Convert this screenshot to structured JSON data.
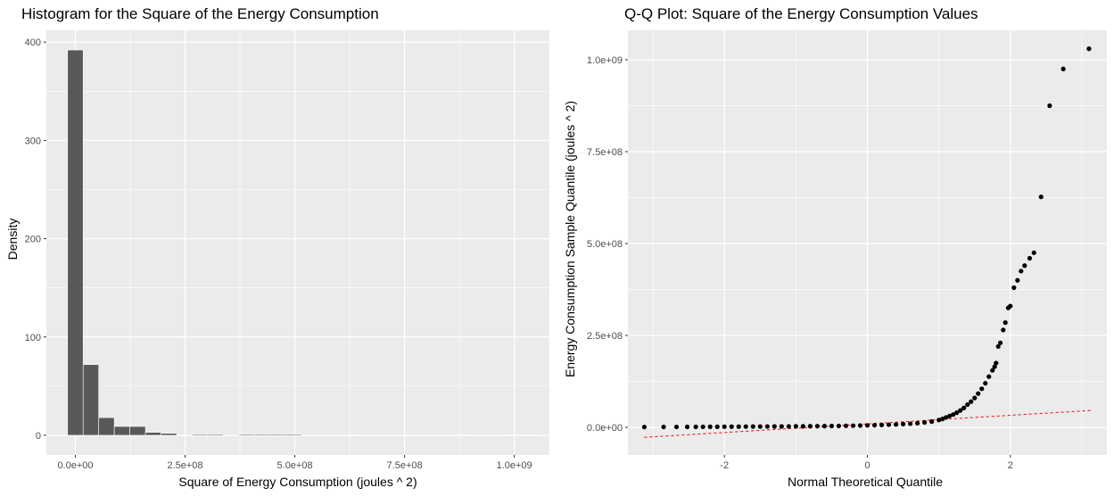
{
  "chart_data": [
    {
      "type": "bar",
      "title": "Histogram for the Square of the Energy Consumption",
      "xlabel": "Square of Energy Consumption (joules ^ 2)",
      "ylabel": "Density",
      "xlim": [
        -66000000.0,
        1080000000.0
      ],
      "ylim": [
        -20,
        412
      ],
      "x_ticks": [
        0,
        250000000,
        500000000,
        750000000,
        1000000000
      ],
      "x_tick_labels": [
        "0.0e+00",
        "2.5e+08",
        "5.0e+08",
        "7.5e+08",
        "1.0e+09"
      ],
      "y_ticks": [
        0,
        100,
        200,
        300,
        400
      ],
      "y_tick_labels": [
        "0",
        "100",
        "200",
        "300",
        "400"
      ],
      "bin_width": 35500000,
      "bins": [
        {
          "x0": -17750000,
          "value": 392
        },
        {
          "x0": 17750000,
          "value": 72
        },
        {
          "x0": 53250000,
          "value": 18
        },
        {
          "x0": 88750000,
          "value": 9
        },
        {
          "x0": 124250000,
          "value": 9
        },
        {
          "x0": 159750000,
          "value": 3
        },
        {
          "x0": 195250000,
          "value": 2
        },
        {
          "x0": 230750000,
          "value": 0
        },
        {
          "x0": 266250000,
          "value": 1
        },
        {
          "x0": 301750000,
          "value": 1
        },
        {
          "x0": 337250000,
          "value": 0
        },
        {
          "x0": 372750000,
          "value": 1
        },
        {
          "x0": 408250000,
          "value": 1
        },
        {
          "x0": 443750000,
          "value": 1
        },
        {
          "x0": 479250000,
          "value": 1
        },
        {
          "x0": 514750000,
          "value": 0
        },
        {
          "x0": 550250000,
          "value": 0
        },
        {
          "x0": 585750000,
          "value": 0
        },
        {
          "x0": 621250000,
          "value": 0.5
        },
        {
          "x0": 656750000,
          "value": 0
        },
        {
          "x0": 692250000,
          "value": 0
        },
        {
          "x0": 727750000,
          "value": 0
        },
        {
          "x0": 763250000,
          "value": 0
        },
        {
          "x0": 798750000,
          "value": 0
        },
        {
          "x0": 834250000,
          "value": 0
        },
        {
          "x0": 869750000,
          "value": 0.5
        },
        {
          "x0": 905250000,
          "value": 0
        },
        {
          "x0": 940750000,
          "value": 0
        },
        {
          "x0": 976250000,
          "value": 0.5
        },
        {
          "x0": 1011750000,
          "value": 0.5
        }
      ],
      "grid": true,
      "colors": {
        "panel": "#ebebeb",
        "grid": "#ffffff",
        "bar": "#595959"
      }
    },
    {
      "type": "scatter",
      "title": "Q-Q Plot: Square of the Energy Consumption Values",
      "xlabel": "Normal Theoretical Quantile",
      "ylabel": "Energy Consumption Sample Quantile (joules ^ 2)",
      "xlim": [
        -3.35,
        3.35
      ],
      "ylim": [
        -75000000.0,
        1080000000.0
      ],
      "x_ticks": [
        -2,
        0,
        2
      ],
      "x_tick_labels": [
        "-2",
        "0",
        "2"
      ],
      "y_ticks": [
        0,
        250000000,
        500000000,
        750000000,
        1000000000
      ],
      "y_tick_labels": [
        "0.0e+00",
        "2.5e+08",
        "5.0e+08",
        "7.5e+08",
        "1.0e+09"
      ],
      "points": [
        [
          -3.12,
          1000000
        ],
        [
          -2.85,
          1200000
        ],
        [
          -2.67,
          1300000
        ],
        [
          -2.52,
          1400000
        ],
        [
          -2.4,
          1500000
        ],
        [
          -2.3,
          1600000
        ],
        [
          -2.2,
          1700000
        ],
        [
          -2.1,
          1800000
        ],
        [
          -2.0,
          1900000
        ],
        [
          -1.9,
          2000000
        ],
        [
          -1.8,
          2100000
        ],
        [
          -1.7,
          2200000
        ],
        [
          -1.6,
          2300000
        ],
        [
          -1.5,
          2400000
        ],
        [
          -1.4,
          2500000
        ],
        [
          -1.3,
          2600000
        ],
        [
          -1.2,
          2700000
        ],
        [
          -1.1,
          2800000
        ],
        [
          -1.0,
          2900000
        ],
        [
          -0.9,
          3000000
        ],
        [
          -0.8,
          3200000
        ],
        [
          -0.7,
          3400000
        ],
        [
          -0.6,
          3600000
        ],
        [
          -0.5,
          3800000
        ],
        [
          -0.4,
          4000000
        ],
        [
          -0.3,
          4300000
        ],
        [
          -0.2,
          4600000
        ],
        [
          -0.1,
          5000000
        ],
        [
          0.0,
          5500000
        ],
        [
          0.1,
          6000000
        ],
        [
          0.2,
          6600000
        ],
        [
          0.3,
          7300000
        ],
        [
          0.4,
          8000000
        ],
        [
          0.5,
          9000000
        ],
        [
          0.6,
          10000000
        ],
        [
          0.7,
          11500000
        ],
        [
          0.8,
          13500000
        ],
        [
          0.9,
          16000000
        ],
        [
          1.0,
          20000000
        ],
        [
          1.05,
          23000000
        ],
        [
          1.1,
          27000000
        ],
        [
          1.15,
          31000000
        ],
        [
          1.2,
          35000000
        ],
        [
          1.25,
          40000000
        ],
        [
          1.3,
          46000000
        ],
        [
          1.35,
          53000000
        ],
        [
          1.4,
          62000000
        ],
        [
          1.45,
          70000000
        ],
        [
          1.5,
          80000000
        ],
        [
          1.55,
          92000000
        ],
        [
          1.6,
          105000000
        ],
        [
          1.65,
          120000000
        ],
        [
          1.7,
          138000000
        ],
        [
          1.75,
          155000000
        ],
        [
          1.78,
          165000000
        ],
        [
          1.8,
          175000000
        ],
        [
          1.83,
          220000000
        ],
        [
          1.86,
          230000000
        ],
        [
          1.9,
          265000000
        ],
        [
          1.93,
          285000000
        ],
        [
          1.97,
          325000000
        ],
        [
          2.0,
          330000000
        ],
        [
          2.05,
          380000000
        ],
        [
          2.1,
          400000000
        ],
        [
          2.15,
          425000000
        ],
        [
          2.2,
          440000000
        ],
        [
          2.27,
          460000000
        ],
        [
          2.33,
          475000000
        ],
        [
          2.43,
          627000000
        ],
        [
          2.55,
          875000000
        ],
        [
          2.74,
          975000000
        ],
        [
          3.1,
          1030000000
        ]
      ],
      "reference_line": {
        "x": [
          -3.12,
          3.12
        ],
        "y": [
          -27000000,
          46000000
        ],
        "color": "#ff0000",
        "style": "dashed"
      },
      "grid": true,
      "colors": {
        "panel": "#ebebeb",
        "grid": "#ffffff",
        "point": "#000000"
      }
    }
  ]
}
